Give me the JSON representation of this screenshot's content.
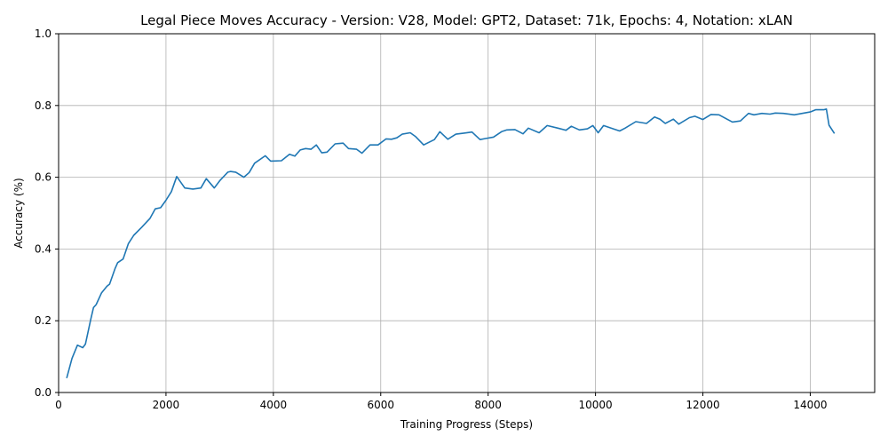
{
  "chart_data": {
    "type": "line",
    "title": "Legal Piece Moves Accuracy - Version: V28, Model: GPT2, Dataset: 71k, Epochs: 4, Notation: xLAN",
    "xlabel": "Training Progress (Steps)",
    "ylabel": "Accuracy (%)",
    "xlim": [
      0,
      15200
    ],
    "ylim": [
      0,
      1.0
    ],
    "x_ticks": [
      0,
      2000,
      4000,
      6000,
      8000,
      10000,
      12000,
      14000
    ],
    "y_ticks": [
      0.0,
      0.2,
      0.4,
      0.6,
      0.8,
      1.0
    ],
    "x_tick_labels": [
      "0",
      "2000",
      "4000",
      "6000",
      "8000",
      "10000",
      "12000",
      "14000"
    ],
    "y_tick_labels": [
      "0.0",
      "0.2",
      "0.4",
      "0.6",
      "0.8",
      "1.0"
    ],
    "grid": true,
    "line_color": "#1f77b4",
    "series": [
      {
        "x": [
          150,
          250,
          350,
          450,
          500,
          600,
          650,
          700,
          800,
          900,
          950,
          1050,
          1100,
          1200,
          1300,
          1400,
          1550,
          1700,
          1800,
          1900,
          2000,
          2100,
          2200,
          2350,
          2500,
          2650,
          2750,
          2900,
          3000,
          3150,
          3200,
          3300,
          3450,
          3550,
          3650,
          3850,
          3950,
          4150,
          4300,
          4400,
          4500,
          4600,
          4700,
          4800,
          4900,
          5000,
          5150,
          5300,
          5400,
          5550,
          5650,
          5800,
          5950,
          6100,
          6200,
          6300,
          6400,
          6550,
          6650,
          6800,
          7000,
          7100,
          7250,
          7400,
          7550,
          7700,
          7850,
          7950,
          8100,
          8250,
          8350,
          8500,
          8650,
          8750,
          8950,
          9100,
          9300,
          9450,
          9550,
          9700,
          9850,
          9950,
          10050,
          10150,
          10350,
          10450,
          10550,
          10750,
          10950,
          11100,
          11200,
          11300,
          11450,
          11550,
          11750,
          11850,
          12000,
          12150,
          12300,
          12450,
          12550,
          12700,
          12850,
          12950,
          13100,
          13250,
          13350,
          13500,
          13700,
          13850,
          14000,
          14100,
          14250,
          14300,
          14350,
          14450
        ],
        "y": [
          0.04,
          0.095,
          0.132,
          0.125,
          0.135,
          0.205,
          0.237,
          0.245,
          0.278,
          0.296,
          0.302,
          0.345,
          0.362,
          0.372,
          0.415,
          0.438,
          0.461,
          0.485,
          0.512,
          0.515,
          0.536,
          0.56,
          0.602,
          0.57,
          0.567,
          0.57,
          0.596,
          0.57,
          0.59,
          0.614,
          0.616,
          0.614,
          0.6,
          0.613,
          0.639,
          0.66,
          0.645,
          0.646,
          0.664,
          0.659,
          0.676,
          0.68,
          0.678,
          0.69,
          0.668,
          0.67,
          0.693,
          0.695,
          0.68,
          0.678,
          0.667,
          0.69,
          0.69,
          0.707,
          0.706,
          0.71,
          0.72,
          0.724,
          0.713,
          0.69,
          0.705,
          0.727,
          0.706,
          0.72,
          0.723,
          0.726,
          0.705,
          0.708,
          0.712,
          0.727,
          0.732,
          0.733,
          0.721,
          0.737,
          0.724,
          0.744,
          0.737,
          0.731,
          0.742,
          0.732,
          0.735,
          0.744,
          0.724,
          0.744,
          0.734,
          0.729,
          0.737,
          0.755,
          0.75,
          0.768,
          0.762,
          0.75,
          0.762,
          0.748,
          0.766,
          0.77,
          0.761,
          0.775,
          0.774,
          0.762,
          0.754,
          0.757,
          0.778,
          0.774,
          0.778,
          0.776,
          0.779,
          0.778,
          0.774,
          0.778,
          0.782,
          0.788,
          0.788,
          0.79,
          0.745,
          0.722
        ]
      }
    ]
  }
}
